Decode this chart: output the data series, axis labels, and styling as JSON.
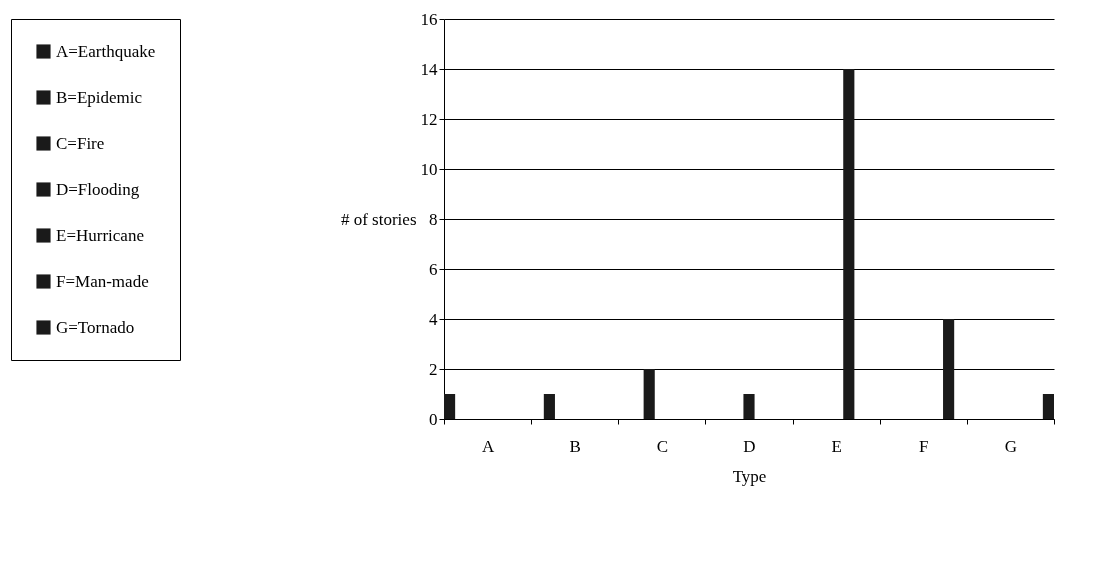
{
  "chart_data": {
    "type": "bar",
    "xlabel": "Type",
    "ylabel": "# of stories",
    "categories": [
      "A",
      "B",
      "C",
      "D",
      "E",
      "F",
      "G"
    ],
    "series": [
      {
        "name": "A=Earthquake",
        "color": "#1a1a1a",
        "values": [
          1,
          null,
          null,
          null,
          null,
          null,
          null
        ]
      },
      {
        "name": "B=Epidemic",
        "color": "#1a1a1a",
        "values": [
          null,
          1,
          null,
          null,
          null,
          null,
          null
        ]
      },
      {
        "name": "C=Fire",
        "color": "#1a1a1a",
        "values": [
          null,
          null,
          2,
          null,
          null,
          null,
          null
        ]
      },
      {
        "name": "D=Flooding",
        "color": "#1a1a1a",
        "values": [
          null,
          null,
          null,
          1,
          null,
          null,
          null
        ]
      },
      {
        "name": "E=Hurricane",
        "color": "#1a1a1a",
        "values": [
          null,
          null,
          null,
          null,
          14,
          null,
          null
        ]
      },
      {
        "name": "F=Man-made",
        "color": "#1a1a1a",
        "values": [
          null,
          null,
          null,
          null,
          null,
          4,
          null
        ]
      },
      {
        "name": "G=Tornado",
        "color": "#1a1a1a",
        "values": [
          null,
          null,
          null,
          null,
          null,
          null,
          1
        ]
      }
    ],
    "ylim": [
      0,
      16
    ],
    "yticks": [
      0,
      2,
      4,
      6,
      8,
      10,
      12,
      14,
      16
    ],
    "grid": "y",
    "legend": "left"
  }
}
